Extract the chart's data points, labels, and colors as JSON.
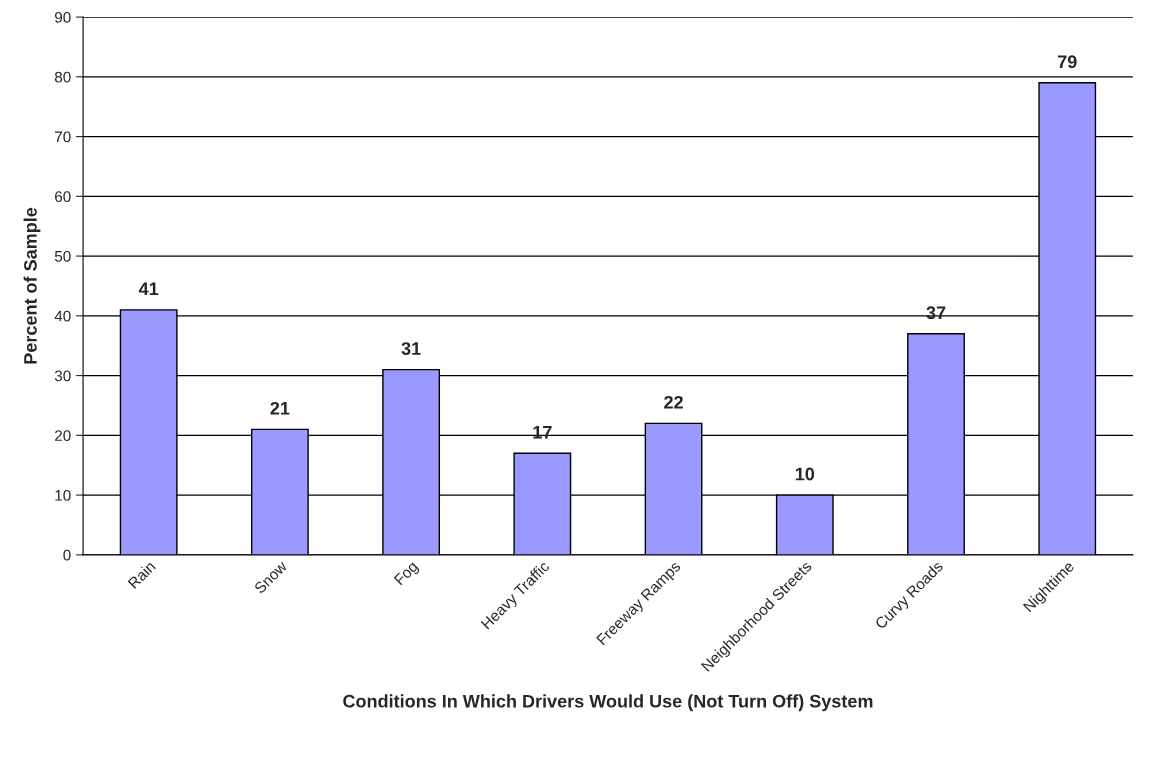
{
  "chart_data": {
    "type": "bar",
    "xlabel": "Conditions In Which Drivers Would Use (Not Turn Off) System",
    "ylabel": "Percent of Sample",
    "categories": [
      "Rain",
      "Snow",
      "Fog",
      "Heavy Traffic",
      "Freeway Ramps",
      "Neighborhood Streets",
      "Curvy Roads",
      "Nighttime"
    ],
    "values": [
      41,
      21,
      31,
      17,
      22,
      10,
      37,
      79
    ],
    "color": "#9999ff",
    "ylim": [
      0,
      90
    ],
    "yticks": [
      0,
      10,
      20,
      30,
      40,
      50,
      60,
      70,
      80,
      90
    ],
    "grid": "y",
    "data_labels": true
  }
}
